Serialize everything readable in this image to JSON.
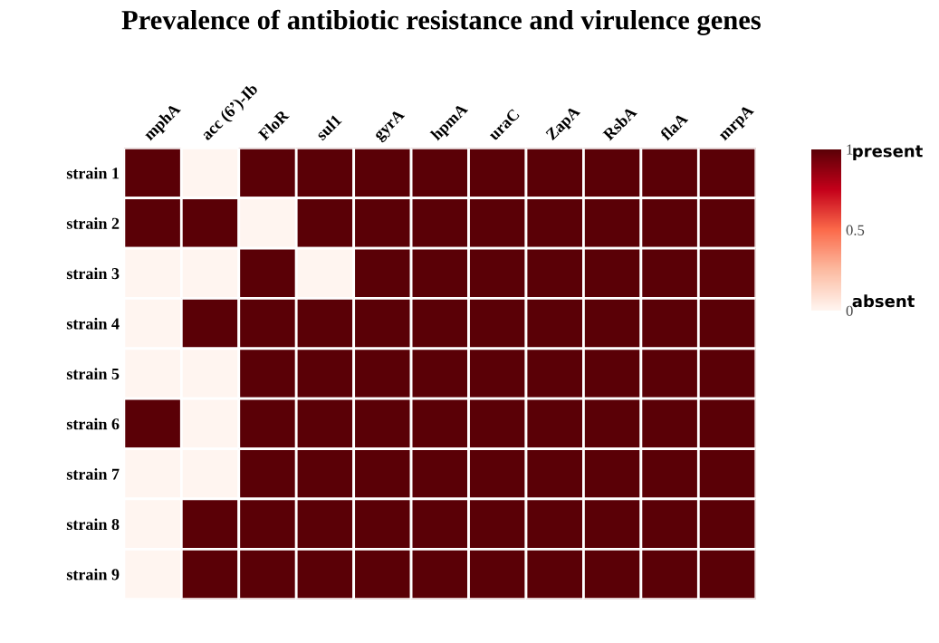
{
  "chart_data": {
    "type": "heatmap",
    "title": "Prevalence of antibiotic resistance and virulence genes",
    "categories": [
      "mphA",
      "acc (6’)-Ib",
      "FloR",
      "sul1",
      "gyrA",
      "hpmA",
      "uraC",
      "ZapA",
      "RsbA",
      "flaA",
      "mrpA"
    ],
    "y_categories": [
      "strain 1",
      "strain 2",
      "strain 3",
      "strain 4",
      "strain 5",
      "strain 6",
      "strain 7",
      "strain 8",
      "strain 9"
    ],
    "cells": [
      [
        1,
        0,
        1,
        1,
        1,
        1,
        1,
        1,
        1,
        1,
        1
      ],
      [
        1,
        1,
        0,
        1,
        1,
        1,
        1,
        1,
        1,
        1,
        1
      ],
      [
        0,
        0,
        1,
        0,
        1,
        1,
        1,
        1,
        1,
        1,
        1
      ],
      [
        0,
        1,
        1,
        1,
        1,
        1,
        1,
        1,
        1,
        1,
        1
      ],
      [
        0,
        0,
        1,
        1,
        1,
        1,
        1,
        1,
        1,
        1,
        1
      ],
      [
        1,
        0,
        1,
        1,
        1,
        1,
        1,
        1,
        1,
        1,
        1
      ],
      [
        0,
        0,
        1,
        1,
        1,
        1,
        1,
        1,
        1,
        1,
        1
      ],
      [
        0,
        1,
        1,
        1,
        1,
        1,
        1,
        1,
        1,
        1,
        1
      ],
      [
        0,
        1,
        1,
        1,
        1,
        1,
        1,
        1,
        1,
        1,
        1
      ]
    ],
    "clim": [
      0,
      1
    ],
    "cticks": [
      0,
      0.5,
      1
    ],
    "annotations": [
      "present",
      "absent"
    ]
  }
}
